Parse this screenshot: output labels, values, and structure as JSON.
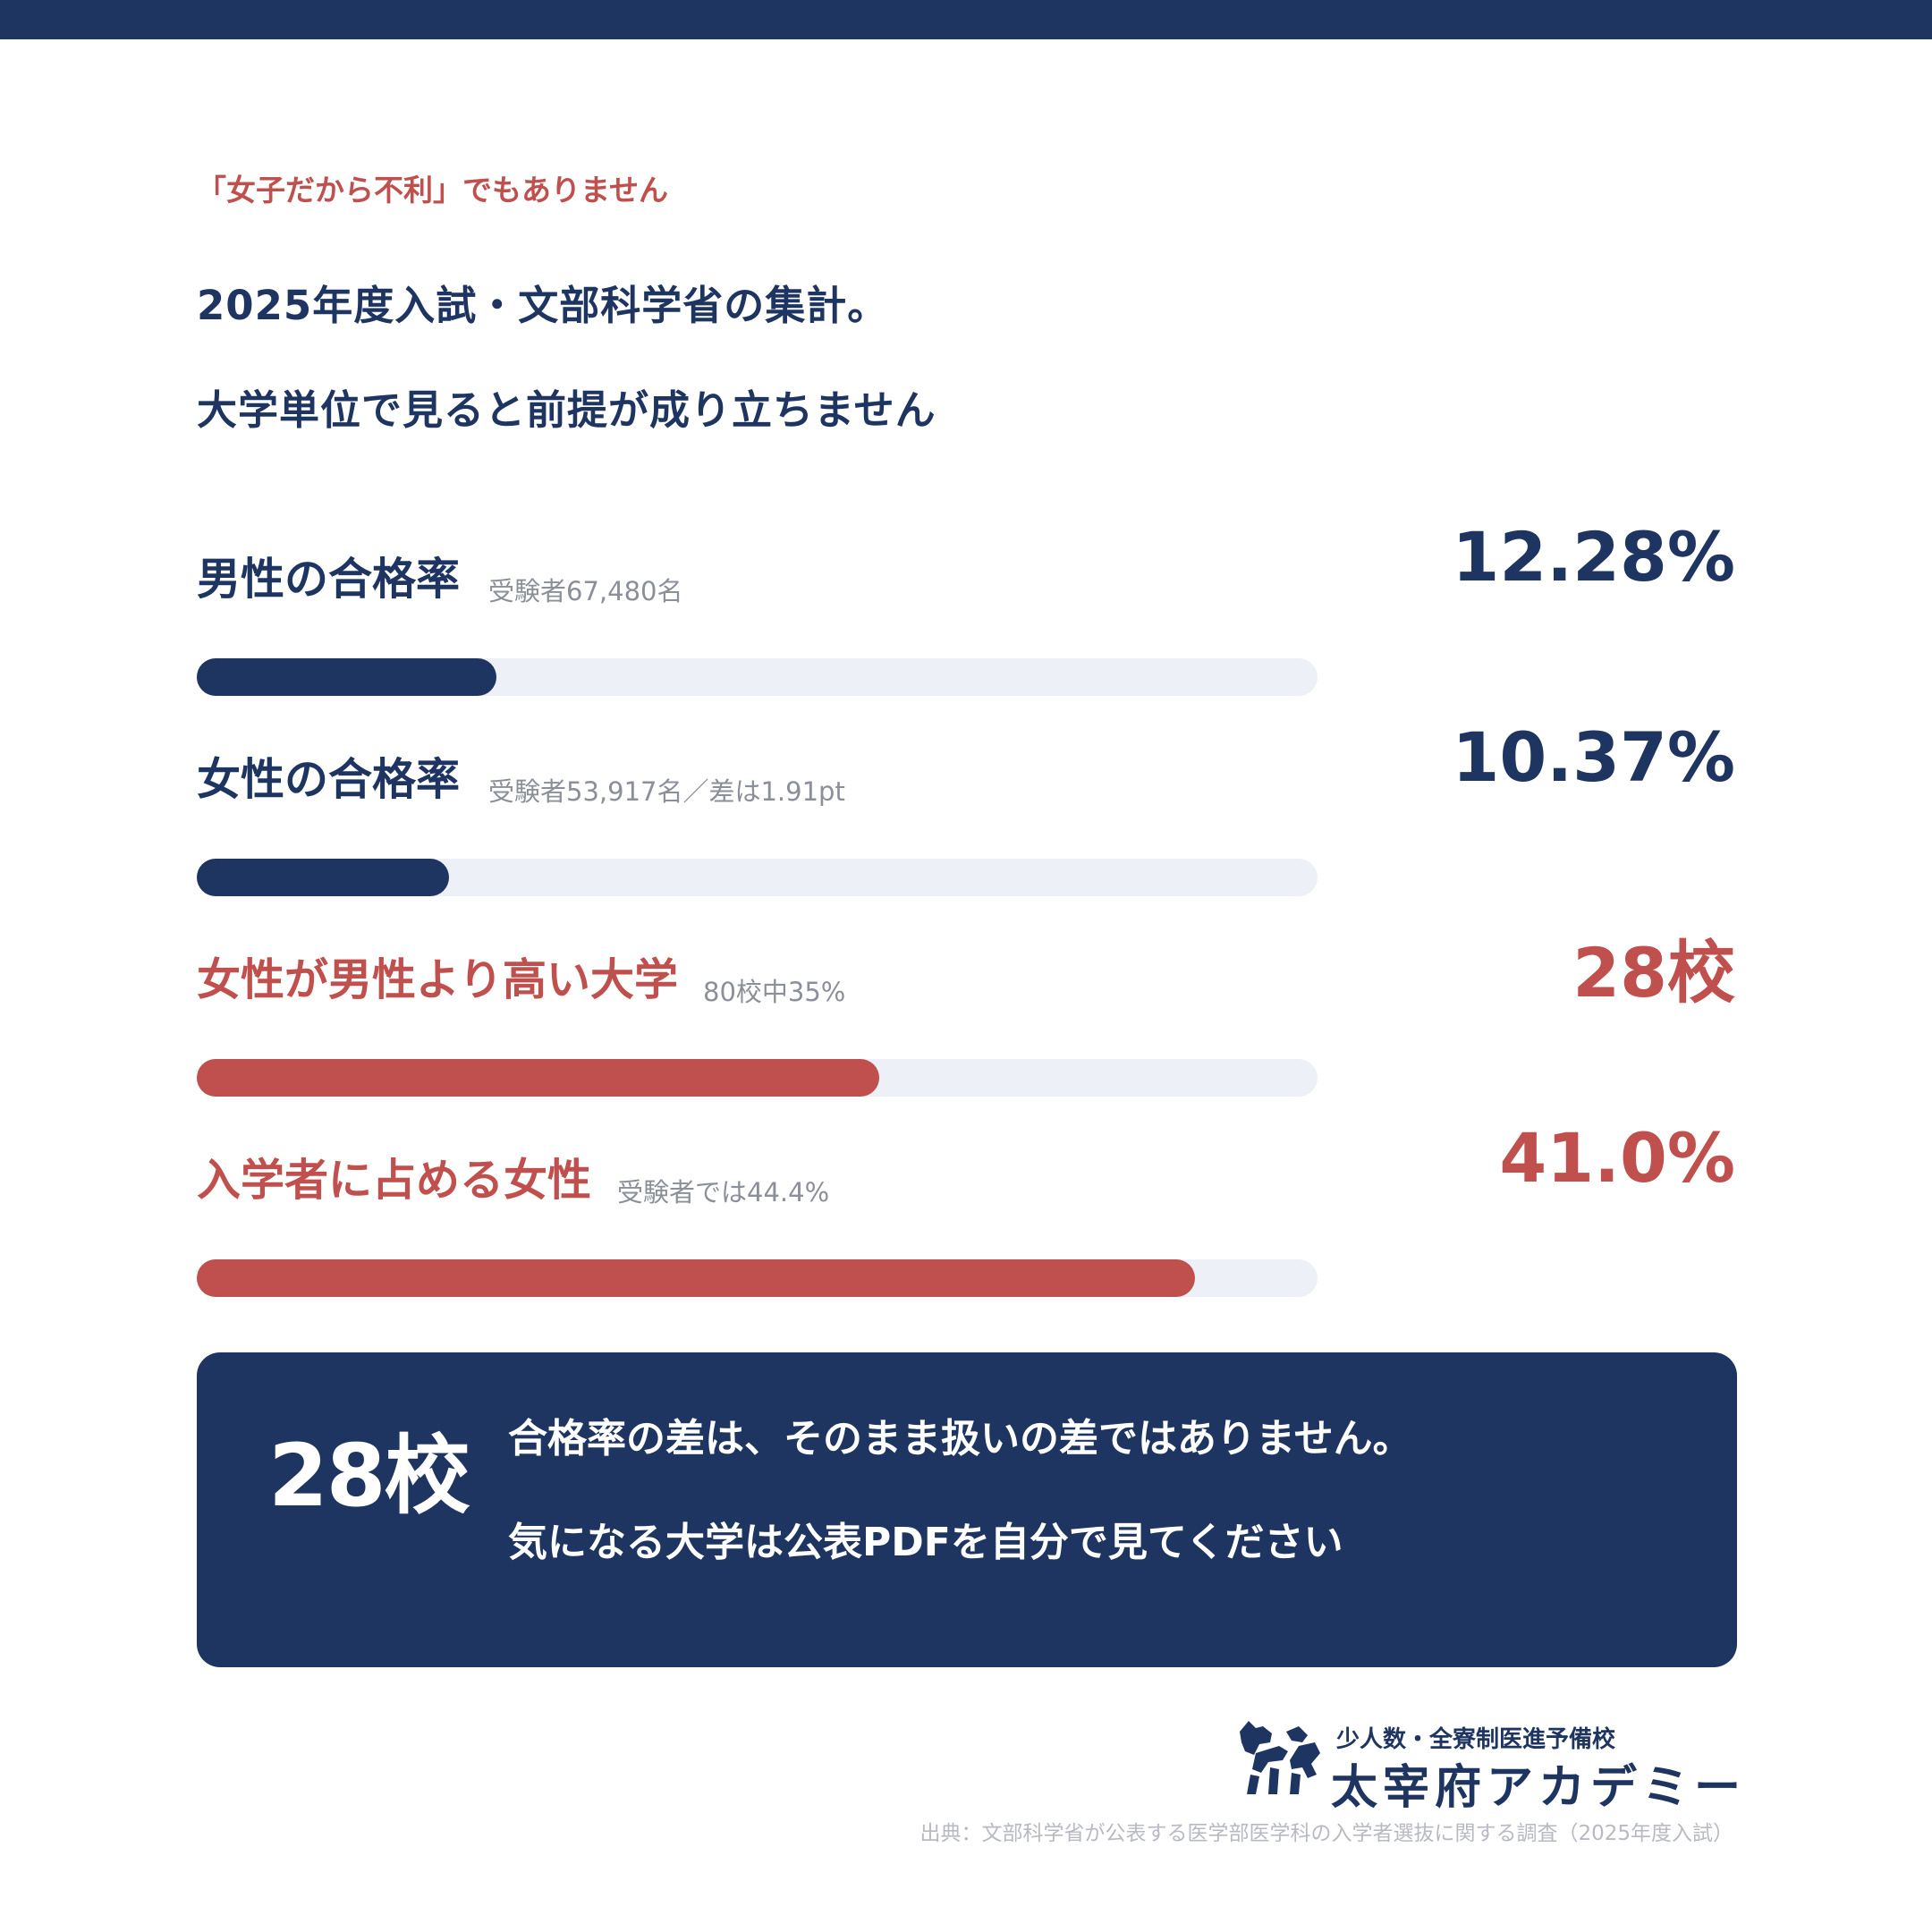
{
  "colors": {
    "navy": "#1f3561",
    "red": "#c0504d",
    "track": "#edf0f7",
    "muted": "#8a8f99",
    "source": "#b7bac2"
  },
  "kicker": "「女子だから不利」でもありません",
  "headline": {
    "line1": "2025年度入試・文部科学省の集計。",
    "line2": "大学単位で見ると前提が成り立ちません"
  },
  "chart_data": {
    "type": "bar",
    "orientation": "horizontal",
    "scale_max": 100,
    "rows": [
      {
        "label": "男性の合格率",
        "note": "受験者67,480名",
        "value_label": "12.28%",
        "fill_pct": 26.7,
        "color": "navy"
      },
      {
        "label": "女性の合格率",
        "note": "受験者53,917名／差は1.91pt",
        "value_label": "10.37%",
        "fill_pct": 22.5,
        "color": "navy"
      },
      {
        "label": "女性が男性より高い大学",
        "note": "80校中35%",
        "value_label": "28校",
        "fill_pct": 60.9,
        "color": "red"
      },
      {
        "label": "入学者に占める女性",
        "note": "受験者では44.4%",
        "value_label": "41.0%",
        "fill_pct": 89.1,
        "color": "red"
      }
    ]
  },
  "callout": {
    "big": "28校",
    "line1": "合格率の差は、そのまま扱いの差ではありません。",
    "line2": "気になる大学は公表PDFを自分で見てください"
  },
  "brand": {
    "tagline": "少人数・全寮制医進予備校",
    "name": "太宰府アカデミー",
    "icon": "dog-silhouette-icon"
  },
  "source": "出典：文部科学省が公表する医学部医学科の入学者選抜に関する調査（2025年度入試）"
}
